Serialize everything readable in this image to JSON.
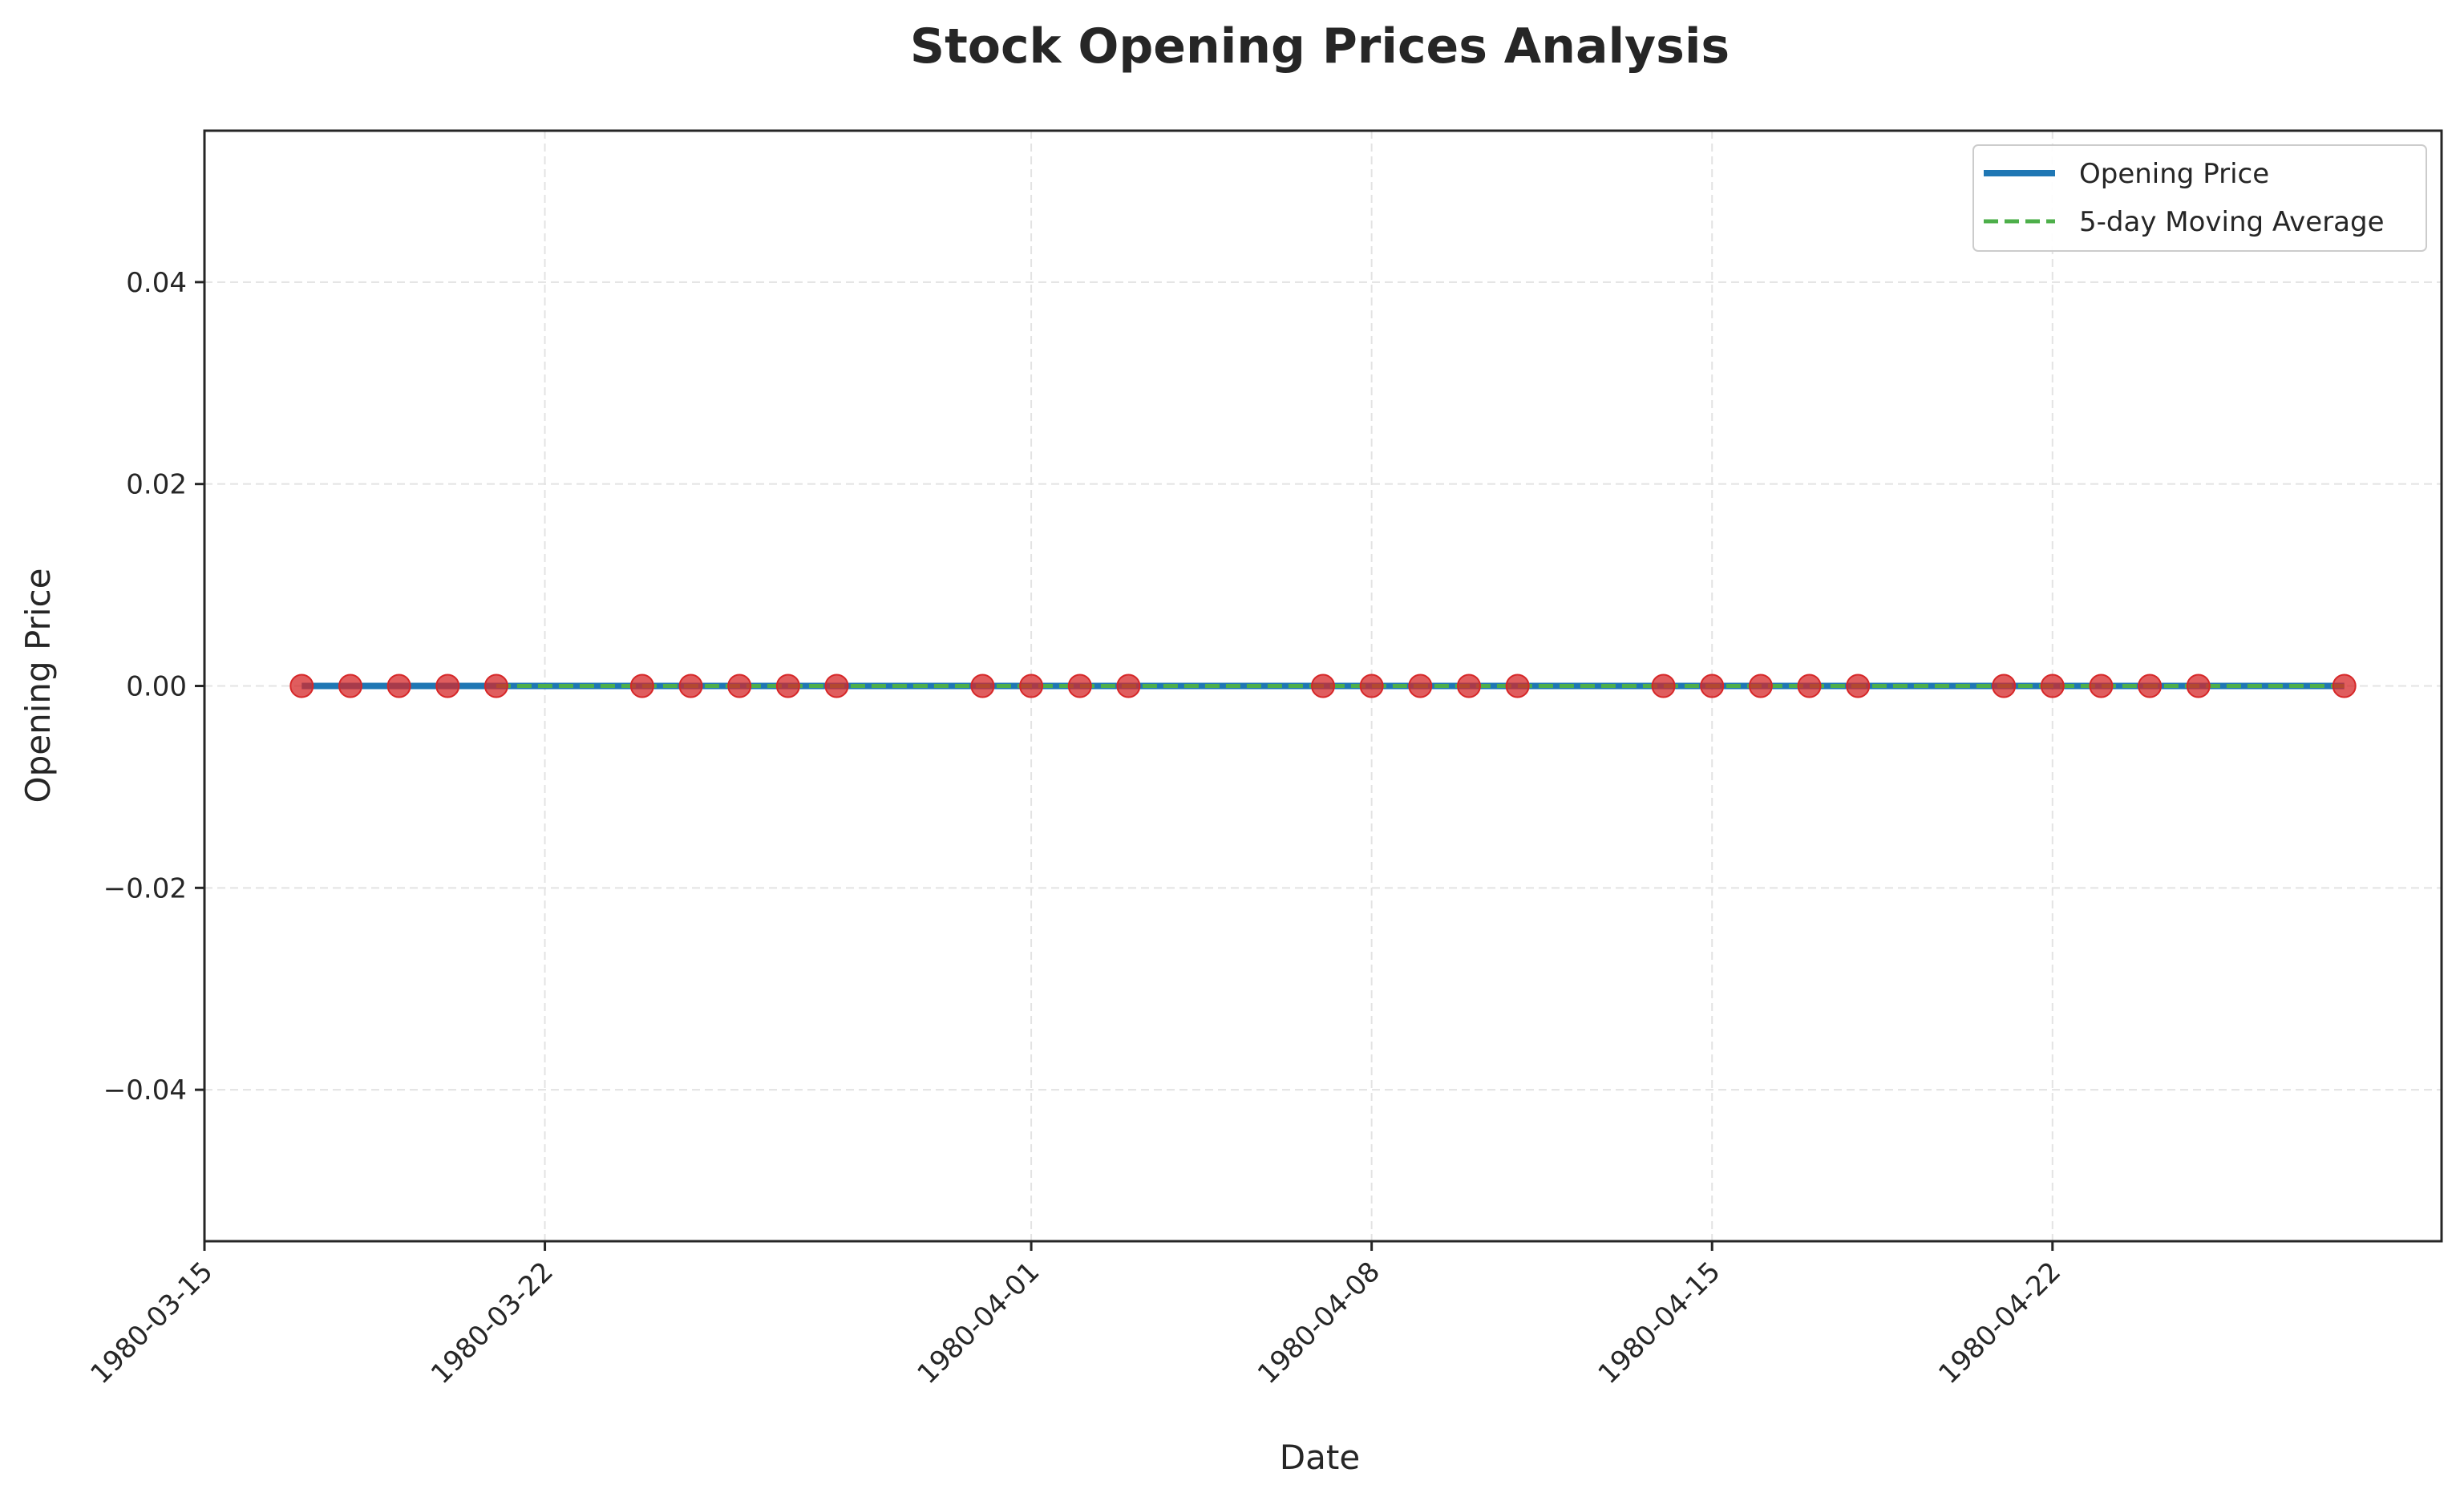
{
  "chart_data": {
    "type": "line",
    "title": "Stock Opening Prices Analysis",
    "xlabel": "Date",
    "ylabel": "Opening Price",
    "x_axis_type": "date",
    "xlim": [
      "1980-03-15",
      "1980-04-30"
    ],
    "ylim": [
      -0.055,
      0.055
    ],
    "x_ticks": [
      "1980-03-15",
      "1980-03-22",
      "1980-04-01",
      "1980-04-08",
      "1980-04-15",
      "1980-04-22"
    ],
    "y_ticks": [
      {
        "value": 0.04,
        "label": "0.04"
      },
      {
        "value": 0.02,
        "label": "0.02"
      },
      {
        "value": 0.0,
        "label": "0.00"
      },
      {
        "value": -0.02,
        "label": "−0.02"
      },
      {
        "value": -0.04,
        "label": "−0.04"
      }
    ],
    "grid": true,
    "legend_position": "top-right",
    "x": [
      "1980-03-17",
      "1980-03-18",
      "1980-03-19",
      "1980-03-20",
      "1980-03-21",
      "1980-03-24",
      "1980-03-25",
      "1980-03-26",
      "1980-03-27",
      "1980-03-28",
      "1980-03-31",
      "1980-04-01",
      "1980-04-02",
      "1980-04-03",
      "1980-04-07",
      "1980-04-08",
      "1980-04-09",
      "1980-04-10",
      "1980-04-11",
      "1980-04-14",
      "1980-04-15",
      "1980-04-16",
      "1980-04-17",
      "1980-04-18",
      "1980-04-21",
      "1980-04-22",
      "1980-04-23",
      "1980-04-24",
      "1980-04-25",
      "1980-04-28"
    ],
    "series": [
      {
        "name": "Opening Price",
        "style": "solid",
        "color": "#1f77b4",
        "values": [
          0,
          0,
          0,
          0,
          0,
          0,
          0,
          0,
          0,
          0,
          0,
          0,
          0,
          0,
          0,
          0,
          0,
          0,
          0,
          0,
          0,
          0,
          0,
          0,
          0,
          0,
          0,
          0,
          0,
          0
        ]
      },
      {
        "name": "5-day Moving Average",
        "style": "dashed",
        "color": "#4daf4a",
        "values": [
          null,
          null,
          null,
          null,
          0,
          0,
          0,
          0,
          0,
          0,
          0,
          0,
          0,
          0,
          0,
          0,
          0,
          0,
          0,
          0,
          0,
          0,
          0,
          0,
          0,
          0,
          0,
          0,
          0,
          0
        ]
      }
    ],
    "marker_color": "#d62728"
  }
}
